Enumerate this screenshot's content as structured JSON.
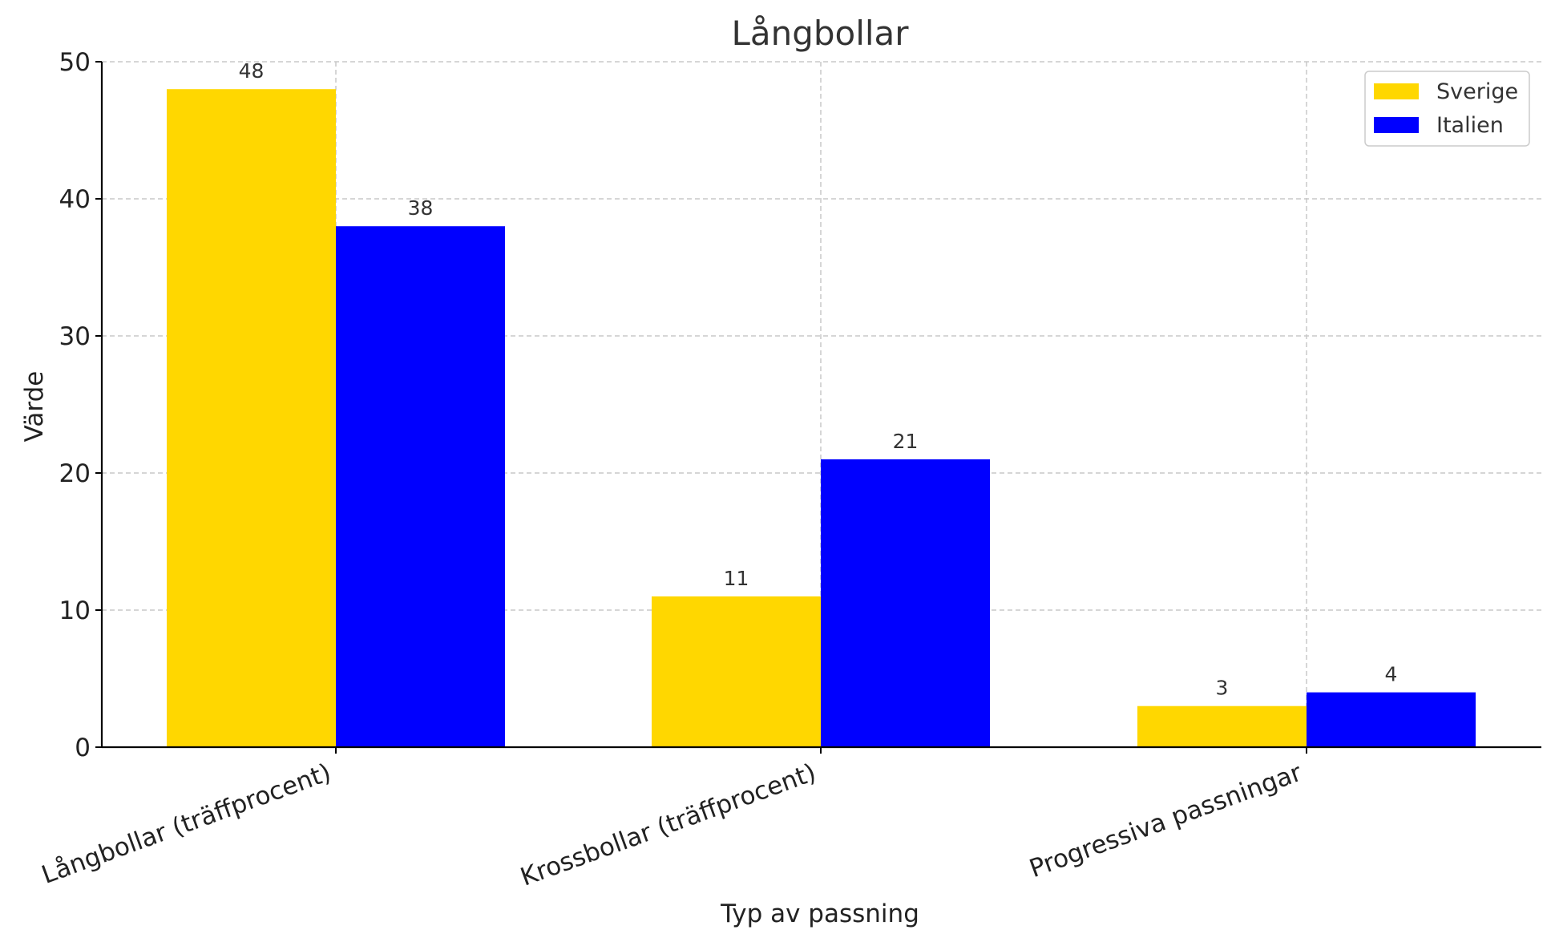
{
  "chart_data": {
    "type": "bar",
    "title": "Långbollar",
    "xlabel": "Typ av passning",
    "ylabel": "Värde",
    "categories": [
      "Långbollar (träffprocent)",
      "Krossbollar (träffprocent)",
      "Progressiva passningar"
    ],
    "series": [
      {
        "name": "Sverige",
        "color": "#FFD700",
        "values": [
          48,
          11,
          3
        ]
      },
      {
        "name": "Italien",
        "color": "#0000FF",
        "values": [
          38,
          21,
          4
        ]
      }
    ],
    "ylim": [
      0,
      50
    ],
    "yticks": [
      0,
      10,
      20,
      30,
      40,
      50
    ],
    "grid": true,
    "legend_position": "top-right"
  }
}
